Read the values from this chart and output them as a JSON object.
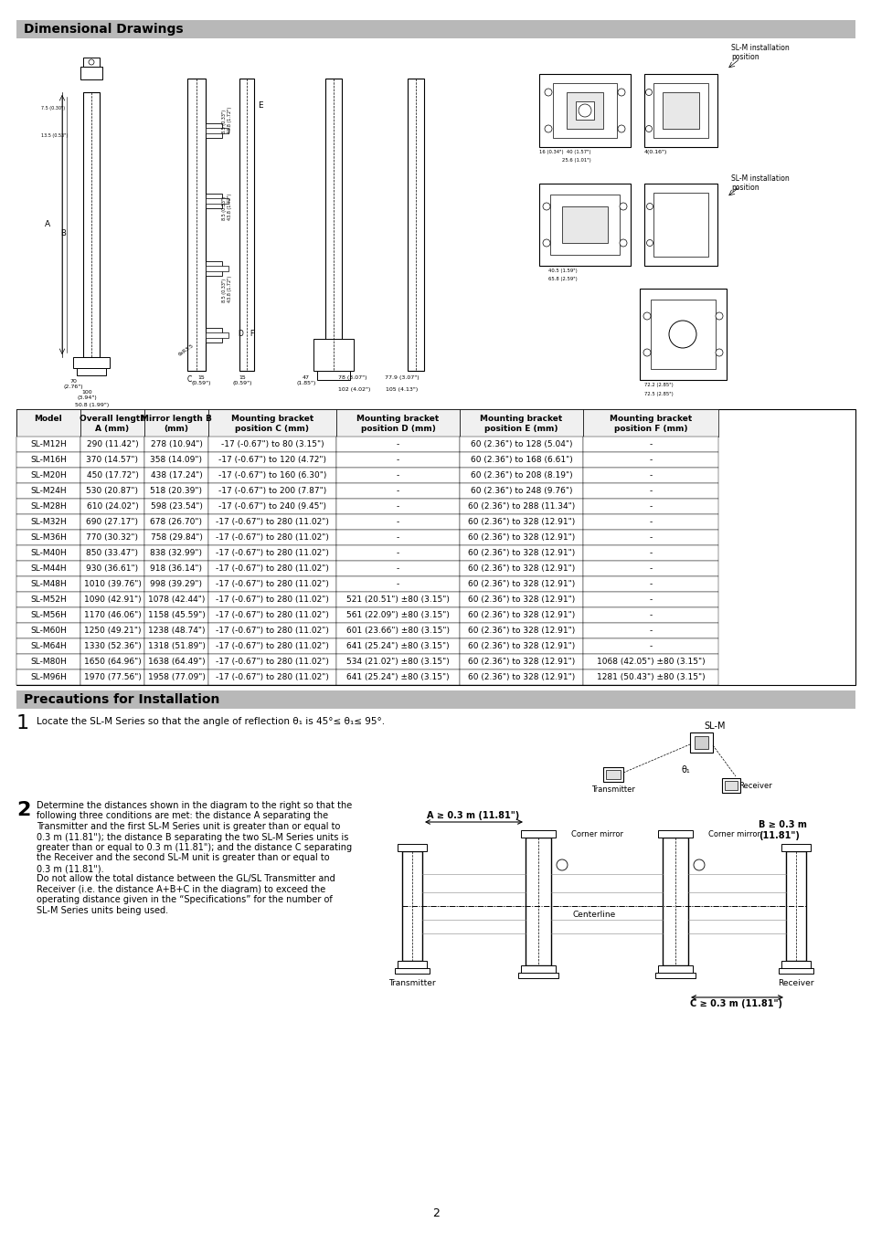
{
  "title_dim": "Dimensional Drawings",
  "title_precaution": "Precautions for Installation",
  "bg_header": "#b8b8b8",
  "bg_white": "#ffffff",
  "table_headers": [
    "Model",
    "Overall length\nA (mm)",
    "Mirror length B\n(mm)",
    "Mounting bracket\nposition C (mm)",
    "Mounting bracket\nposition D (mm)",
    "Mounting bracket\nposition E (mm)",
    "Mounting bracket\nposition F (mm)"
  ],
  "table_rows": [
    [
      "SL-M12H",
      "290 (11.42\")",
      "278 (10.94\")",
      "-17 (-0.67\") to 80 (3.15\")",
      "-",
      "60 (2.36\") to 128 (5.04\")",
      "-"
    ],
    [
      "SL-M16H",
      "370 (14.57\")",
      "358 (14.09\")",
      "-17 (-0.67\") to 120 (4.72\")",
      "-",
      "60 (2.36\") to 168 (6.61\")",
      "-"
    ],
    [
      "SL-M20H",
      "450 (17.72\")",
      "438 (17.24\")",
      "-17 (-0.67\") to 160 (6.30\")",
      "-",
      "60 (2.36\") to 208 (8.19\")",
      "-"
    ],
    [
      "SL-M24H",
      "530 (20.87\")",
      "518 (20.39\")",
      "-17 (-0.67\") to 200 (7.87\")",
      "-",
      "60 (2.36\") to 248 (9.76\")",
      "-"
    ],
    [
      "SL-M28H",
      "610 (24.02\")",
      "598 (23.54\")",
      "-17 (-0.67\") to 240 (9.45\")",
      "-",
      "60 (2.36\") to 288 (11.34\")",
      "-"
    ],
    [
      "SL-M32H",
      "690 (27.17\")",
      "678 (26.70\")",
      "-17 (-0.67\") to 280 (11.02\")",
      "-",
      "60 (2.36\") to 328 (12.91\")",
      "-"
    ],
    [
      "SL-M36H",
      "770 (30.32\")",
      "758 (29.84\")",
      "-17 (-0.67\") to 280 (11.02\")",
      "-",
      "60 (2.36\") to 328 (12.91\")",
      "-"
    ],
    [
      "SL-M40H",
      "850 (33.47\")",
      "838 (32.99\")",
      "-17 (-0.67\") to 280 (11.02\")",
      "-",
      "60 (2.36\") to 328 (12.91\")",
      "-"
    ],
    [
      "SL-M44H",
      "930 (36.61\")",
      "918 (36.14\")",
      "-17 (-0.67\") to 280 (11.02\")",
      "-",
      "60 (2.36\") to 328 (12.91\")",
      "-"
    ],
    [
      "SL-M48H",
      "1010 (39.76\")",
      "998 (39.29\")",
      "-17 (-0.67\") to 280 (11.02\")",
      "-",
      "60 (2.36\") to 328 (12.91\")",
      "-"
    ],
    [
      "SL-M52H",
      "1090 (42.91\")",
      "1078 (42.44\")",
      "-17 (-0.67\") to 280 (11.02\")",
      "521 (20.51\") ±80 (3.15\")",
      "60 (2.36\") to 328 (12.91\")",
      "-"
    ],
    [
      "SL-M56H",
      "1170 (46.06\")",
      "1158 (45.59\")",
      "-17 (-0.67\") to 280 (11.02\")",
      "561 (22.09\") ±80 (3.15\")",
      "60 (2.36\") to 328 (12.91\")",
      "-"
    ],
    [
      "SL-M60H",
      "1250 (49.21\")",
      "1238 (48.74\")",
      "-17 (-0.67\") to 280 (11.02\")",
      "601 (23.66\") ±80 (3.15\")",
      "60 (2.36\") to 328 (12.91\")",
      "-"
    ],
    [
      "SL-M64H",
      "1330 (52.36\")",
      "1318 (51.89\")",
      "-17 (-0.67\") to 280 (11.02\")",
      "641 (25.24\") ±80 (3.15\")",
      "60 (2.36\") to 328 (12.91\")",
      "-"
    ],
    [
      "SL-M80H",
      "1650 (64.96\")",
      "1638 (64.49\")",
      "-17 (-0.67\") to 280 (11.02\")",
      "534 (21.02\") ±80 (3.15\")",
      "60 (2.36\") to 328 (12.91\")",
      "1068 (42.05\") ±80 (3.15\")"
    ],
    [
      "SL-M96H",
      "1970 (77.56\")",
      "1958 (77.09\")",
      "-17 (-0.67\") to 280 (11.02\")",
      "641 (25.24\") ±80 (3.15\")",
      "60 (2.36\") to 328 (12.91\")",
      "1281 (50.43\") ±80 (3.15\")"
    ]
  ],
  "precaution1": "Locate the SL-M Series so that the angle of reflection θ₁ is 45°≤ θ₁≤ 95°.",
  "precaution2_lines": [
    "Determine the distances shown in the diagram to the right so that the",
    "following three conditions are met: the distance A separating the",
    "Transmitter and the first SL-M Series unit is greater than or equal to",
    "0.3 m (11.81\"); the distance B separating the two SL-M Series units is",
    "greater than or equal to 0.3 m (11.81\"); and the distance C separating",
    "the Receiver and the second SL-M unit is greater than or equal to",
    "0.3 m (11.81\").",
    "Do not allow the total distance between the GL/SL Transmitter and",
    "Receiver (i.e. the distance A+B+C in the diagram) to exceed the",
    "operating distance given in the “Specifications” for the number of",
    "SL-M Series units being used."
  ],
  "page_num": "2",
  "font_size_title": 10,
  "font_size_table_hdr": 6.5,
  "font_size_table_cell": 6.5,
  "font_size_body": 7.5,
  "font_size_small": 4.5
}
